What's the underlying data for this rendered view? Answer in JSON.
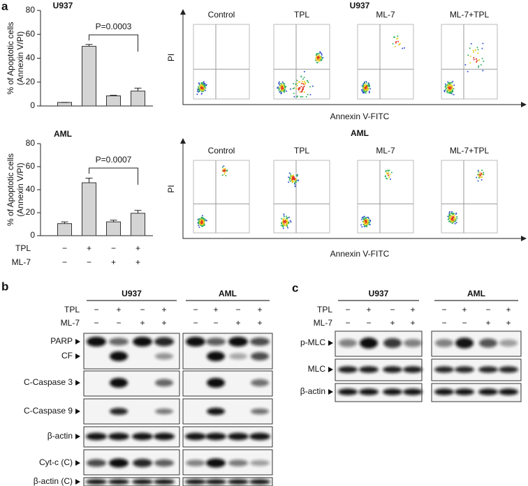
{
  "panel_labels": [
    "a",
    "b",
    "c"
  ],
  "chart_data": [
    {
      "type": "bar",
      "title": "U937",
      "y_label": [
        "% of Apoptotic cells",
        "(Annexin V/PI)"
      ],
      "annotation": "P=0.0003",
      "categories": [
        null,
        null,
        null,
        null
      ],
      "values": [
        3,
        50,
        8.5,
        12.5
      ],
      "errors": [
        0,
        1.5,
        0.5,
        2.5
      ],
      "color": "#d4d4d4",
      "ylim": [
        0,
        80
      ],
      "yticks": [
        0,
        20,
        40,
        60,
        80
      ]
    },
    {
      "type": "bar",
      "title": "AML",
      "y_label": [
        "% of Apoptotic cells",
        "(Annexin V/PI)"
      ],
      "annotation": "P=0.0007",
      "categories": [
        null,
        null,
        null,
        null
      ],
      "values": [
        10.5,
        46,
        12,
        19.5
      ],
      "errors": [
        1.5,
        4,
        1.5,
        2.5
      ],
      "color": "#d4d4d4",
      "ylim": [
        0,
        80
      ],
      "yticks": [
        0,
        20,
        40,
        60,
        80
      ]
    }
  ],
  "treatments": [
    {
      "label": "TPL",
      "signs": [
        "−",
        "+",
        "−",
        "+"
      ]
    },
    {
      "label": "ML-7",
      "signs": [
        "−",
        "−",
        "+",
        "+"
      ]
    }
  ],
  "flow_cytometry": [
    {
      "title": "U937",
      "x_label": "Annexin V-FITC",
      "y_label": "PI",
      "samples": [
        "Control",
        "TPL",
        "ML-7",
        "ML-7+TPL"
      ]
    },
    {
      "title": "AML",
      "x_label": "Annexin V-FITC",
      "y_label": "PI",
      "samples": [
        "Control",
        "TPL",
        "ML-7",
        "ML-7+TPL"
      ]
    }
  ],
  "western_b": {
    "groups": [
      "U937",
      "AML"
    ],
    "blots": [
      "PARP",
      "CF",
      "C-Caspase 3",
      "C-Caspase 9",
      "β-actin",
      "Cyt-c (C)",
      "β-actin (C)"
    ]
  },
  "western_c": {
    "groups": [
      "U937",
      "AML"
    ],
    "blots": [
      "p-MLC",
      "MLC",
      "β-actin"
    ]
  }
}
